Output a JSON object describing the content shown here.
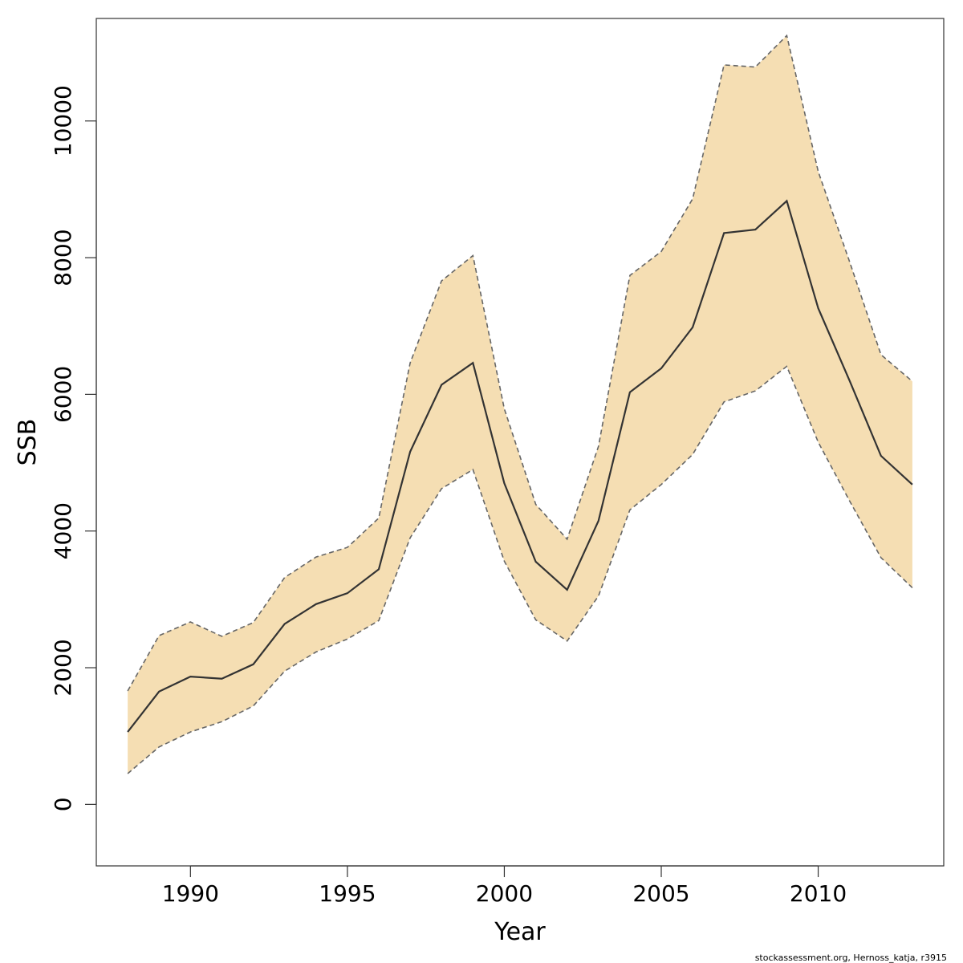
{
  "chart_data": {
    "type": "area",
    "title": "",
    "xlabel": "Year",
    "ylabel": "SSB",
    "x": [
      1988,
      1989,
      1990,
      1991,
      1992,
      1993,
      1994,
      1995,
      1996,
      1997,
      1998,
      1999,
      2000,
      2001,
      2002,
      2003,
      2004,
      2005,
      2006,
      2007,
      2008,
      2009,
      2010,
      2011,
      2012,
      2013
    ],
    "series": [
      {
        "name": "",
        "role": "estimate",
        "values": [
          1060,
          1650,
          1870,
          1840,
          2050,
          2640,
          2930,
          3090,
          3440,
          5160,
          6140,
          6460,
          4700,
          3550,
          3140,
          4150,
          6030,
          6380,
          6980,
          8360,
          8410,
          8830,
          7260,
          6200,
          5100,
          4680
        ]
      },
      {
        "name": "",
        "role": "upper",
        "values": [
          1660,
          2470,
          2670,
          2460,
          2660,
          3320,
          3620,
          3760,
          4190,
          6460,
          7660,
          8030,
          5790,
          4390,
          3880,
          5240,
          7740,
          8090,
          8860,
          10820,
          10790,
          11250,
          9260,
          7940,
          6580,
          6190
        ]
      },
      {
        "name": "",
        "role": "lower",
        "values": [
          450,
          840,
          1060,
          1210,
          1440,
          1950,
          2230,
          2420,
          2690,
          3900,
          4620,
          4900,
          3560,
          2700,
          2390,
          3050,
          4310,
          4680,
          5120,
          5890,
          6050,
          6410,
          5300,
          4440,
          3610,
          3170
        ]
      }
    ],
    "xlim": [
      1987,
      2014
    ],
    "ylim": [
      -900,
      11500
    ],
    "x_ticks": [
      1990,
      1995,
      2000,
      2005,
      2010
    ],
    "y_ticks": [
      0,
      2000,
      4000,
      6000,
      8000,
      10000
    ],
    "grid": false,
    "legend": "none",
    "colors": {
      "band": "#f5deb3",
      "line": "#333333",
      "bound": "#666666",
      "axis": "#333333"
    }
  },
  "credit": "stockassessment.org, Hernoss_katja, r3915"
}
